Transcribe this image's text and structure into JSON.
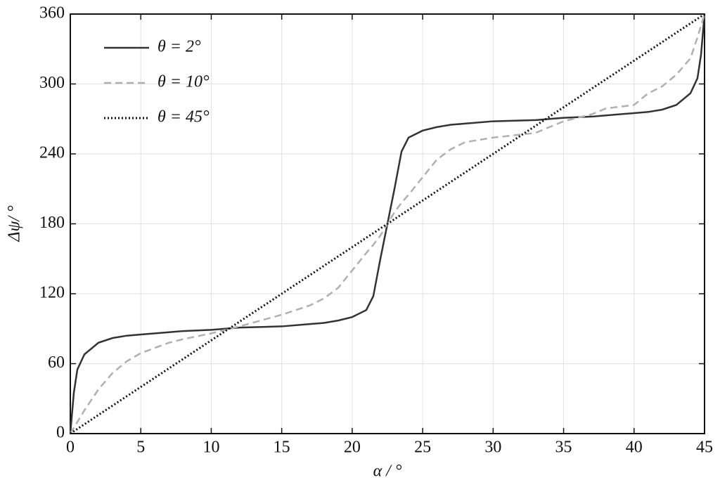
{
  "chart_data": {
    "type": "line",
    "xlabel": "α / °",
    "ylabel": "Δψ/ °",
    "x": [
      0,
      0.25,
      0.5,
      1,
      2,
      3,
      4,
      5,
      7,
      8,
      10,
      12,
      15,
      17,
      18,
      19,
      20,
      21,
      21.5,
      22,
      22.5,
      23,
      23.5,
      24,
      25,
      26,
      27,
      28,
      30,
      33,
      35,
      37,
      38,
      40,
      41,
      42,
      43,
      44,
      44.5,
      44.75,
      45
    ],
    "series": [
      {
        "name": "θ = 2°",
        "color": "#333333",
        "linestyle": "solid",
        "values": [
          0,
          35,
          55,
          68,
          78,
          82,
          84,
          85,
          87,
          88,
          89,
          91,
          92,
          94,
          95,
          97,
          100,
          106,
          118,
          150,
          180,
          210,
          242,
          254,
          260,
          263,
          265,
          266,
          268,
          269,
          271,
          272,
          273,
          275,
          276,
          278,
          282,
          292,
          305,
          325,
          360
        ]
      },
      {
        "name": "θ = 10°",
        "color": "#b0b0b0",
        "linestyle": "dashed",
        "values": [
          0,
          5,
          10,
          20,
          38,
          52,
          62,
          69,
          78,
          81,
          86,
          92,
          102,
          110,
          116,
          125,
          140,
          155,
          162,
          170,
          180,
          190,
          198,
          205,
          220,
          235,
          244,
          250,
          254,
          258,
          268,
          274,
          279,
          282,
          292,
          298,
          308,
          322,
          340,
          350,
          360
        ]
      },
      {
        "name": "θ = 45°",
        "color": "#111111",
        "linestyle": "dotted",
        "values": [
          0,
          2,
          4,
          8,
          16,
          24,
          32,
          40,
          56,
          64,
          80,
          96,
          120,
          136,
          144,
          152,
          160,
          168,
          172,
          176,
          180,
          184,
          188,
          192,
          200,
          208,
          216,
          224,
          240,
          264,
          280,
          296,
          304,
          320,
          328,
          336,
          344,
          352,
          356,
          358,
          360
        ]
      }
    ],
    "xlim": [
      0,
      45
    ],
    "xticks": [
      0,
      5,
      10,
      15,
      20,
      25,
      30,
      35,
      40,
      45
    ],
    "ylim": [
      0,
      360
    ],
    "yticks": [
      0,
      60,
      120,
      180,
      240,
      300,
      360
    ],
    "grid": true,
    "legend": "upper left"
  }
}
